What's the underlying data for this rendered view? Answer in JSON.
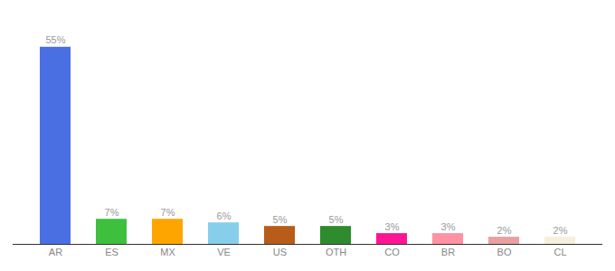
{
  "chart_data": {
    "type": "bar",
    "categories": [
      "AR",
      "ES",
      "MX",
      "VE",
      "US",
      "OTH",
      "CO",
      "BR",
      "BO",
      "CL"
    ],
    "values": [
      55,
      7,
      7,
      6,
      5,
      5,
      3,
      3,
      2,
      2
    ],
    "value_labels": [
      "55%",
      "7%",
      "7%",
      "6%",
      "5%",
      "5%",
      "3%",
      "3%",
      "2%",
      "2%"
    ],
    "colors": [
      "#4A6FE3",
      "#3EBF3E",
      "#FFA500",
      "#87CEEB",
      "#B85C1A",
      "#2E8B2E",
      "#FF1493",
      "#FF91A4",
      "#E8A0A0",
      "#F5F0DC"
    ],
    "ylim": [
      0,
      62
    ],
    "data_labels": true,
    "tick_labels": "x",
    "grid": false
  }
}
